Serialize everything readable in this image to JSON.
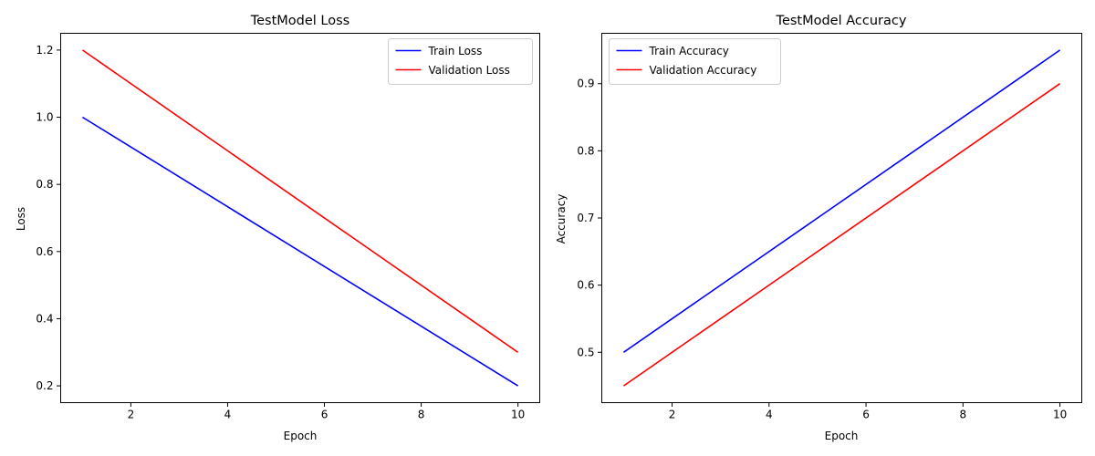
{
  "chart_data": [
    {
      "type": "line",
      "title": "TestModel Loss",
      "xlabel": "Epoch",
      "ylabel": "Loss",
      "xlim": [
        0.55,
        10.45
      ],
      "ylim": [
        0.15,
        1.25
      ],
      "xticks": [
        2,
        4,
        6,
        8,
        10
      ],
      "yticks": [
        0.2,
        0.4,
        0.6,
        0.8,
        1.0,
        1.2
      ],
      "tick_labels_x": [
        "2",
        "4",
        "6",
        "8",
        "10"
      ],
      "tick_labels_y": [
        "0.2",
        "0.4",
        "0.6",
        "0.8",
        "1.0",
        "1.2"
      ],
      "grid": false,
      "legend_position": "upper right",
      "x": [
        1,
        10
      ],
      "series": [
        {
          "name": "Train Loss",
          "color": "#0000ff",
          "values": [
            1.0,
            0.2
          ]
        },
        {
          "name": "Validation Loss",
          "color": "#ff0000",
          "values": [
            1.2,
            0.3
          ]
        }
      ]
    },
    {
      "type": "line",
      "title": "TestModel Accuracy",
      "xlabel": "Epoch",
      "ylabel": "Accuracy",
      "xlim": [
        0.55,
        10.45
      ],
      "ylim": [
        0.425,
        0.975
      ],
      "xticks": [
        2,
        4,
        6,
        8,
        10
      ],
      "yticks": [
        0.5,
        0.6,
        0.7,
        0.8,
        0.9
      ],
      "tick_labels_x": [
        "2",
        "4",
        "6",
        "8",
        "10"
      ],
      "tick_labels_y": [
        "0.5",
        "0.6",
        "0.7",
        "0.8",
        "0.9"
      ],
      "grid": false,
      "legend_position": "upper left",
      "x": [
        1,
        10
      ],
      "series": [
        {
          "name": "Train Accuracy",
          "color": "#0000ff",
          "values": [
            0.5,
            0.95
          ]
        },
        {
          "name": "Validation Accuracy",
          "color": "#ff0000",
          "values": [
            0.45,
            0.9
          ]
        }
      ]
    }
  ]
}
